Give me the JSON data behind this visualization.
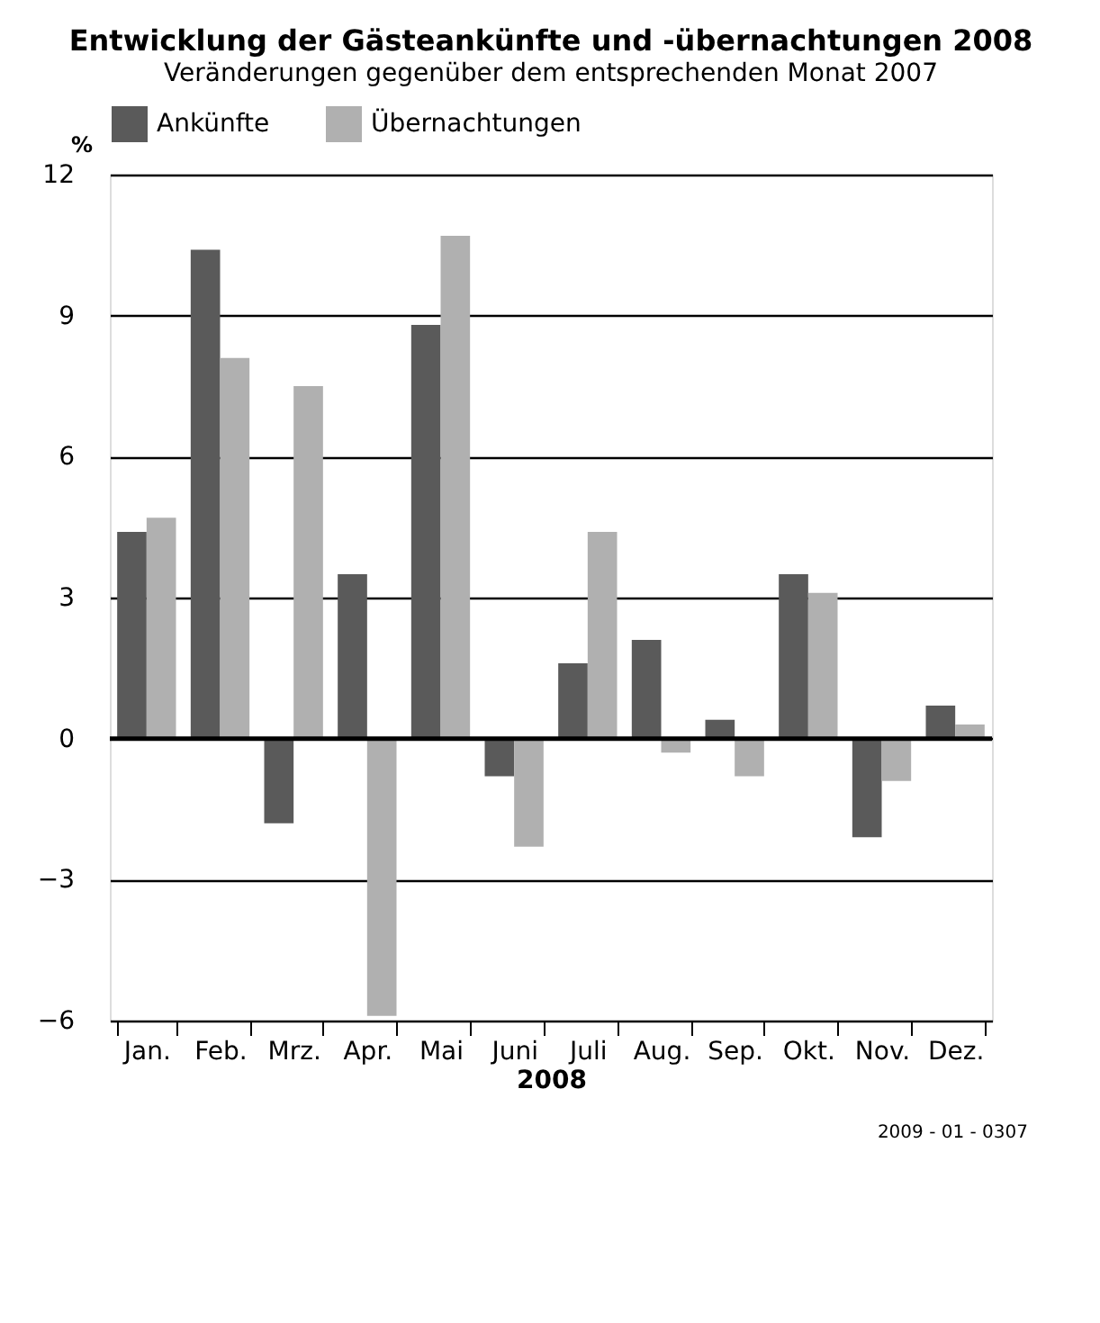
{
  "chart_data": {
    "type": "bar",
    "title": "Entwicklung der Gästeankünfte und -übernachtungen 2008",
    "subtitle": "Veränderungen gegenüber dem entsprechenden Monat 2007",
    "xlabel": "2008",
    "ylabel": "%",
    "categories": [
      "Jan.",
      "Feb.",
      "Mrz.",
      "Apr.",
      "Mai",
      "Juni",
      "Juli",
      "Aug.",
      "Sep.",
      "Okt.",
      "Nov.",
      "Dez."
    ],
    "series": [
      {
        "name": "Ankünfte",
        "color": "#5a5a5a",
        "values": [
          4.4,
          10.4,
          -1.8,
          3.5,
          8.8,
          -0.8,
          1.6,
          2.1,
          0.4,
          3.5,
          -2.1,
          0.7
        ]
      },
      {
        "name": "Übernachtungen",
        "color": "#b0b0b0",
        "values": [
          4.7,
          8.1,
          7.5,
          -5.9,
          10.7,
          -2.3,
          4.4,
          -0.3,
          -0.8,
          3.1,
          -0.9,
          0.3
        ]
      }
    ],
    "ylim": [
      -6,
      12
    ],
    "yticks": [
      -6,
      -3,
      0,
      3,
      6,
      9,
      12
    ],
    "grid": "y",
    "legend": "top",
    "annotations": [
      "2009 - 01 - 0307"
    ]
  }
}
